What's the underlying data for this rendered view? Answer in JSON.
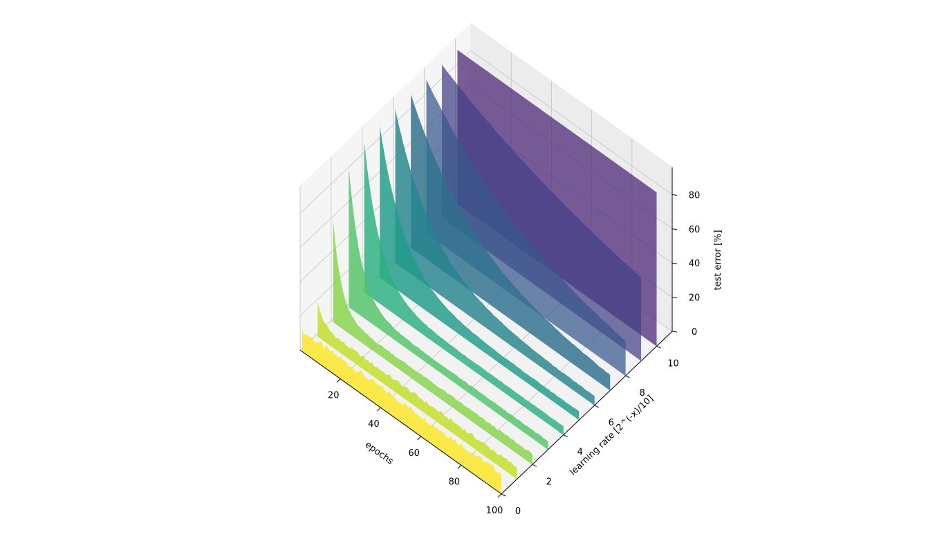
{
  "chart_data": {
    "type": "area",
    "title": "",
    "projection": "3d",
    "colormap": "viridis",
    "x_axis": {
      "label": "epochs",
      "range": [
        0,
        100
      ],
      "ticks": [
        20,
        40,
        60,
        80,
        100
      ],
      "tick_labels": [
        "20",
        "40",
        "60",
        "80",
        "100"
      ]
    },
    "y_axis": {
      "label": "learning rate [2^(-x)/10]",
      "range": [
        0,
        11
      ],
      "ticks": [
        0,
        2,
        4,
        6,
        8,
        10
      ],
      "tick_labels": [
        "0",
        "2",
        "4",
        "6",
        "8",
        "10"
      ]
    },
    "z_axis": {
      "label": "test error [%]",
      "range": [
        0,
        90
      ],
      "ticks": [
        0,
        20,
        40,
        60,
        80
      ],
      "tick_labels": [
        "0",
        "20",
        "40",
        "60",
        "80"
      ]
    },
    "grid": true,
    "series": [
      {
        "y": 0,
        "color": "#fde725",
        "start_error": 12,
        "final_error": 12,
        "decay_epochs": 1,
        "noise": 1.6
      },
      {
        "y": 1,
        "color": "#c2df23",
        "start_error": 20,
        "final_error": 7,
        "decay_epochs": 3,
        "noise": 1.0
      },
      {
        "y": 2,
        "color": "#86d549",
        "start_error": 60,
        "final_error": 6,
        "decay_epochs": 4,
        "noise": 0.5
      },
      {
        "y": 3,
        "color": "#52c569",
        "start_error": 82,
        "final_error": 5,
        "decay_epochs": 6,
        "noise": 0.3
      },
      {
        "y": 4,
        "color": "#2ab07f",
        "start_error": 88,
        "final_error": 5,
        "decay_epochs": 8,
        "noise": 0.2
      },
      {
        "y": 5,
        "color": "#1e9b8a",
        "start_error": 89,
        "final_error": 5,
        "decay_epochs": 12,
        "noise": 0.2
      },
      {
        "y": 6,
        "color": "#25858e",
        "start_error": 90,
        "final_error": 5,
        "decay_epochs": 18,
        "noise": 0.2
      },
      {
        "y": 7,
        "color": "#2d708e",
        "start_error": 90,
        "final_error": 6,
        "decay_epochs": 30,
        "noise": 0.2
      },
      {
        "y": 8,
        "color": "#38588c",
        "start_error": 90,
        "final_error": 9,
        "decay_epochs": 50,
        "noise": 0.2
      },
      {
        "y": 9,
        "color": "#433e85",
        "start_error": 90,
        "final_error": 30,
        "decay_epochs": 85,
        "noise": 0.2
      },
      {
        "y": 10,
        "color": "#482173",
        "start_error": 90,
        "final_error": 90,
        "decay_epochs": 1,
        "noise": 0.0
      }
    ]
  }
}
